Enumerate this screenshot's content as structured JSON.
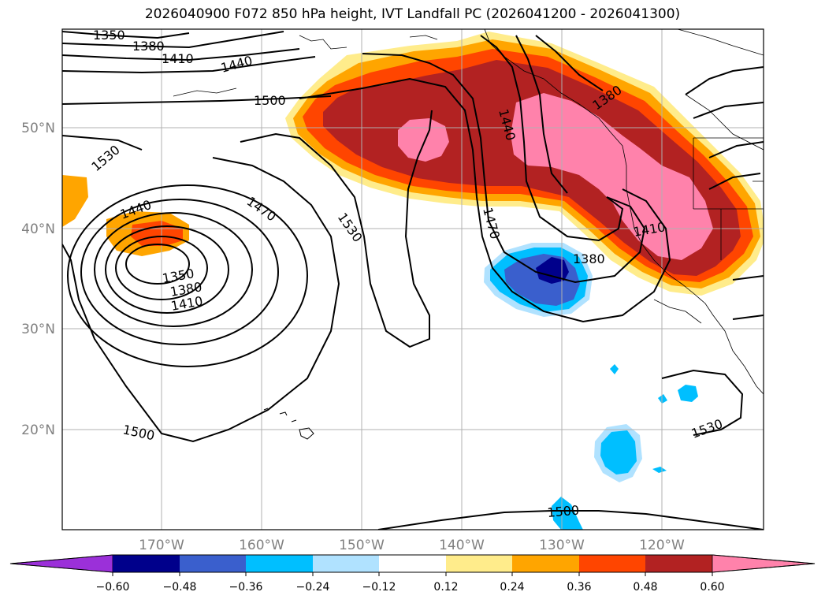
{
  "title": "2026040900 F072 850 hPa height, IVT Landfall PC (2026041200 - 2026041300)",
  "map": {
    "lat_labels": [
      "50°N",
      "40°N",
      "30°N",
      "20°N"
    ],
    "lon_labels": [
      "170°W",
      "160°W",
      "150°W",
      "140°W",
      "130°W",
      "120°W"
    ],
    "gridlines": true,
    "contour_labels": [
      {
        "id": "c1350a",
        "text": "1350"
      },
      {
        "id": "c1380a",
        "text": "1380"
      },
      {
        "id": "c1410a",
        "text": "1410"
      },
      {
        "id": "c1440a",
        "text": "1440"
      },
      {
        "id": "c1500a",
        "text": "1500"
      },
      {
        "id": "c1530a",
        "text": "1530"
      },
      {
        "id": "c1440b",
        "text": "1440"
      },
      {
        "id": "c1470b",
        "text": "1470"
      },
      {
        "id": "c1350b",
        "text": "1350"
      },
      {
        "id": "c1380b",
        "text": "1380"
      },
      {
        "id": "c1410b",
        "text": "1410"
      },
      {
        "id": "c1530b",
        "text": "1530"
      },
      {
        "id": "c1500b",
        "text": "1500"
      },
      {
        "id": "c1440c",
        "text": "1440"
      },
      {
        "id": "c1470c",
        "text": "1470"
      },
      {
        "id": "c1380c",
        "text": "1380"
      },
      {
        "id": "c1380d",
        "text": "1380"
      },
      {
        "id": "c1410c",
        "text": "1410"
      },
      {
        "id": "c1530c",
        "text": "1530"
      },
      {
        "id": "c1500c",
        "text": "1500"
      }
    ]
  },
  "colorbar": {
    "ticks": [
      "−0.60",
      "−0.48",
      "−0.36",
      "−0.24",
      "−0.12",
      "0.12",
      "0.24",
      "0.36",
      "0.48",
      "0.60"
    ],
    "colors": [
      "#9b30d9",
      "#00008b",
      "#3a5fcd",
      "#00bfff",
      "#b0e2ff",
      "#ffffff",
      "#ffec8b",
      "#ffa500",
      "#ff4500",
      "#b22222",
      "#ff82ab"
    ],
    "extend": "both"
  }
}
